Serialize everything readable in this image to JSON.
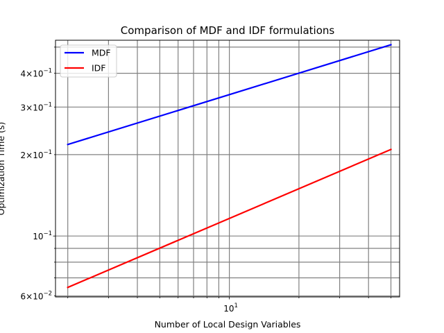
{
  "chart_data": {
    "type": "line",
    "title": "Comparison of MDF and IDF formulations",
    "xlabel": "Number of Local Design Variables",
    "ylabel": "Optimization Time (s)",
    "xscale": "log",
    "yscale": "log",
    "xlim": [
      1.77,
      54.5
    ],
    "ylim": [
      0.0595,
      0.53
    ],
    "grid": true,
    "grid_which": "both",
    "legend_position": "upper-left",
    "x_tick_labels": [
      {
        "value": 10,
        "label": "10^1"
      }
    ],
    "y_tick_labels": [
      {
        "value": 0.06,
        "label": "6×10^-2"
      },
      {
        "value": 0.1,
        "label": "10^-1"
      },
      {
        "value": 0.2,
        "label": "2×10^-1"
      },
      {
        "value": 0.3,
        "label": "3×10^-1"
      },
      {
        "value": 0.4,
        "label": "4×10^-1"
      }
    ],
    "x_minor_grid": [
      2,
      3,
      4,
      5,
      6,
      7,
      8,
      9,
      20,
      30,
      40,
      50
    ],
    "y_minor_grid": [
      0.06,
      0.07,
      0.08,
      0.09,
      0.2,
      0.3,
      0.4,
      0.5
    ],
    "series": [
      {
        "name": "MDF",
        "color": "#0000ff",
        "x": [
          2,
          50
        ],
        "y": [
          0.218,
          0.51
        ]
      },
      {
        "name": "IDF",
        "color": "#ff0000",
        "x": [
          2,
          50
        ],
        "y": [
          0.0645,
          0.209
        ]
      }
    ]
  }
}
